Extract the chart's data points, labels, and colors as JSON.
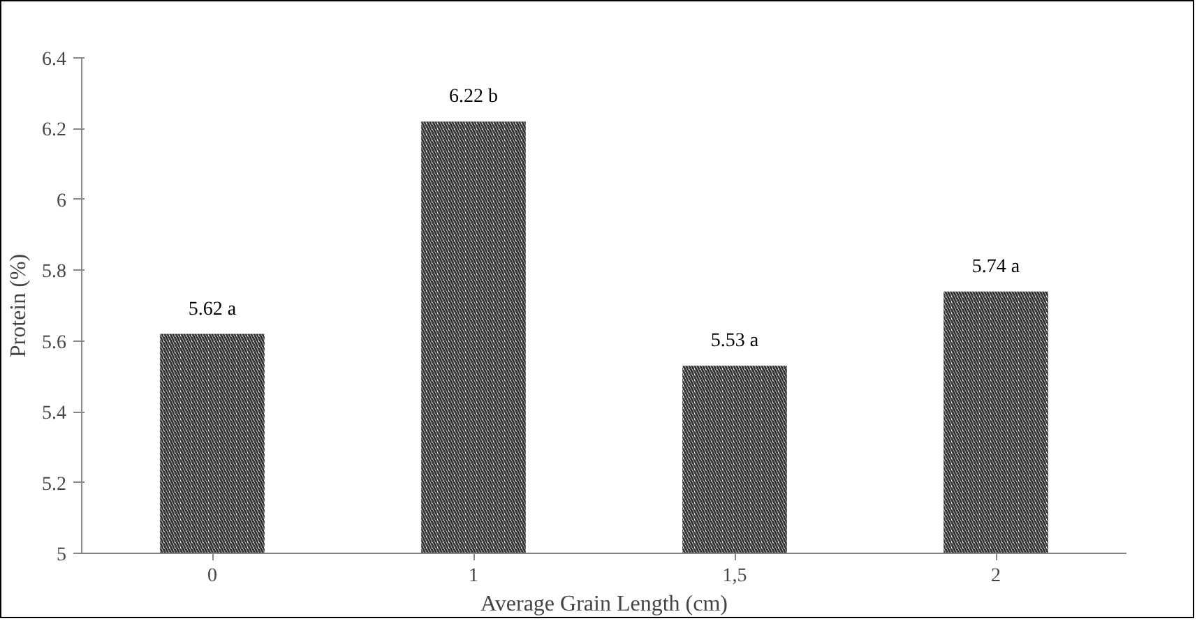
{
  "chart_data": {
    "type": "bar",
    "xlabel": "Average Grain Length (cm)",
    "ylabel": "Protein (%)",
    "categories": [
      "0",
      "1",
      "1,5",
      "2"
    ],
    "values": [
      5.62,
      6.22,
      5.53,
      5.74
    ],
    "value_labels": [
      "5.62 a",
      "6.22 b",
      "5.53 a",
      "5.74 a"
    ],
    "color": "#333333",
    "ylim": [
      5,
      6.4
    ],
    "yticks": [
      5,
      5.2,
      5.4,
      5.6,
      5.8,
      6,
      6.2,
      6.4
    ],
    "grid": false
  }
}
